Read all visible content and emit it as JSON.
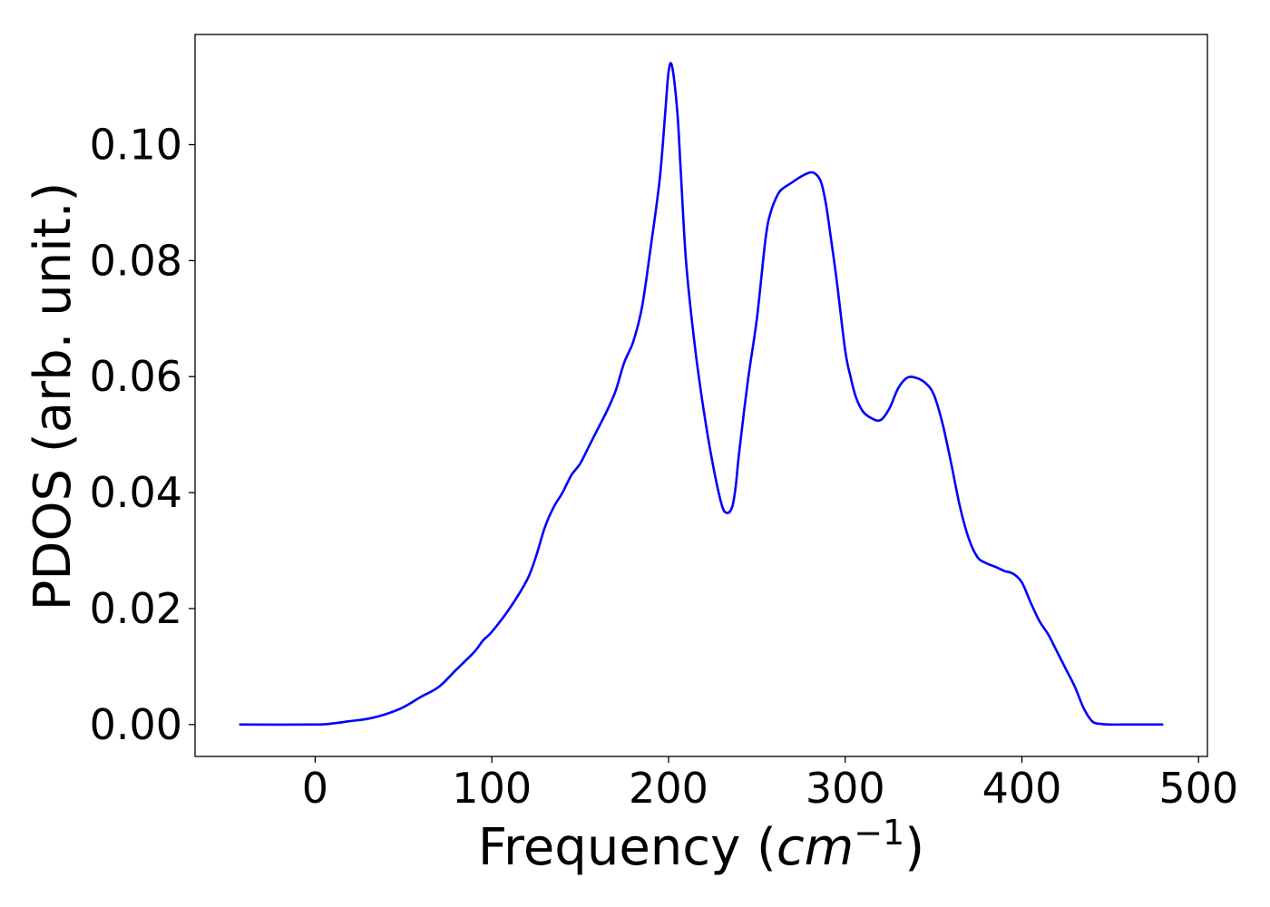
{
  "chart_data": {
    "type": "line",
    "title": "",
    "xlabel_main": "Frequency (",
    "xlabel_unit": "cm",
    "xlabel_exp": "−1",
    "xlabel_close": ")",
    "ylabel": "PDOS (arb. unit.)",
    "xlim": [
      -68,
      505
    ],
    "ylim": [
      -0.0055,
      0.119
    ],
    "xticks": [
      0,
      100,
      200,
      300,
      400,
      500
    ],
    "xtick_labels": [
      "0",
      "100",
      "200",
      "300",
      "400",
      "500"
    ],
    "yticks": [
      0.0,
      0.02,
      0.04,
      0.06,
      0.08,
      0.1
    ],
    "ytick_labels": [
      "0.00",
      "0.02",
      "0.04",
      "0.06",
      "0.08",
      "0.10"
    ],
    "grid": false,
    "series": [
      {
        "color": "#0000ff",
        "x": [
          -43,
          0,
          10,
          20,
          30,
          40,
          50,
          60,
          70,
          80,
          90,
          95,
          100,
          110,
          120,
          125,
          130,
          135,
          140,
          145,
          150,
          155,
          160,
          165,
          170,
          175,
          180,
          185,
          190,
          195,
          198,
          200,
          202,
          205,
          207,
          210,
          215,
          220,
          225,
          230,
          233,
          236,
          238,
          240,
          245,
          250,
          255,
          258,
          262,
          265,
          270,
          275,
          280,
          283,
          286,
          288,
          290,
          295,
          300,
          303,
          306,
          310,
          315,
          320,
          325,
          330,
          335,
          340,
          345,
          350,
          355,
          360,
          365,
          370,
          375,
          380,
          385,
          390,
          395,
          400,
          405,
          410,
          415,
          420,
          425,
          430,
          435,
          440,
          445,
          450,
          460,
          470,
          480
        ],
        "y": [
          0.0,
          0.0,
          0.0002,
          0.0006,
          0.001,
          0.0018,
          0.003,
          0.0048,
          0.0065,
          0.0095,
          0.0125,
          0.0145,
          0.016,
          0.02,
          0.025,
          0.029,
          0.034,
          0.0375,
          0.04,
          0.043,
          0.045,
          0.048,
          0.051,
          0.054,
          0.0575,
          0.0625,
          0.066,
          0.072,
          0.0825,
          0.094,
          0.105,
          0.1125,
          0.1135,
          0.1055,
          0.095,
          0.0795,
          0.065,
          0.054,
          0.045,
          0.038,
          0.0365,
          0.0375,
          0.041,
          0.047,
          0.0595,
          0.07,
          0.084,
          0.0885,
          0.0915,
          0.0925,
          0.0935,
          0.0945,
          0.0952,
          0.095,
          0.0938,
          0.0915,
          0.088,
          0.077,
          0.0645,
          0.06,
          0.0565,
          0.054,
          0.0528,
          0.0525,
          0.0545,
          0.058,
          0.0598,
          0.0598,
          0.059,
          0.057,
          0.052,
          0.045,
          0.0375,
          0.032,
          0.0288,
          0.0278,
          0.0272,
          0.0265,
          0.026,
          0.0245,
          0.021,
          0.0178,
          0.0155,
          0.0125,
          0.0095,
          0.0065,
          0.0028,
          0.0005,
          0.0001,
          0.0,
          0.0,
          0.0,
          0.0
        ]
      }
    ]
  }
}
